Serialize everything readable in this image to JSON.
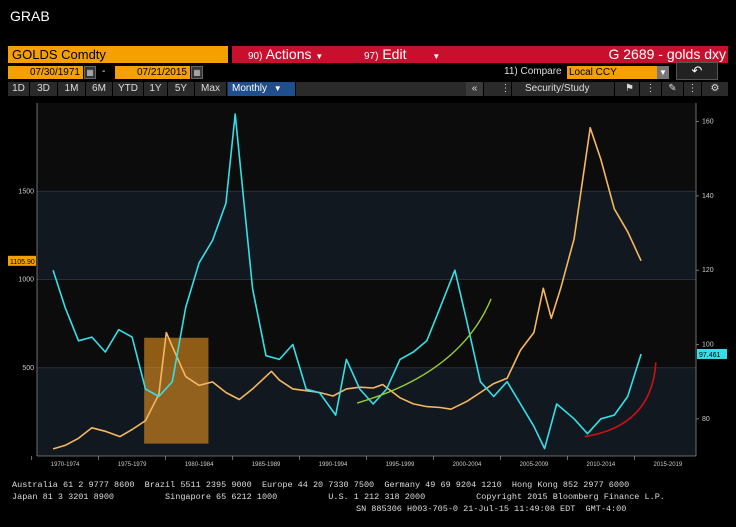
{
  "window": {
    "title": "GRAB"
  },
  "header": {
    "ticker": "GOLDS Comdty",
    "actions": {
      "num": "90)",
      "label": "Actions"
    },
    "edit": {
      "num": "97)",
      "label": "Edit"
    },
    "chart_title": "G 2689 - golds dxy"
  },
  "date_range": {
    "start": "07/30/1971",
    "separator": "-",
    "end": "07/21/2015"
  },
  "compare": {
    "label": "11) Compare",
    "value": "Local CCY"
  },
  "toolbar": {
    "periods": [
      "1D",
      "3D",
      "1M",
      "6M",
      "YTD",
      "1Y",
      "5Y",
      "Max"
    ],
    "frequency": "Monthly",
    "security_study": "Security/Study",
    "collapse": "«"
  },
  "colors": {
    "gold_series": "#f5b860",
    "dxy_series": "#33e0e8",
    "highlight_box": "#e8921e",
    "green_arc": "#9acd32",
    "red_arc": "#cc1111",
    "accent_orange": "#f5a000",
    "bar_red": "#c8102e"
  },
  "chart_data": {
    "type": "line",
    "left_axis": {
      "ticks": [
        "500",
        "1000",
        "1500"
      ],
      "ylim": [
        0,
        2000
      ]
    },
    "right_axis": {
      "ticks": [
        "80",
        "100",
        "120",
        "140",
        "160"
      ],
      "ylim": [
        70,
        165
      ]
    },
    "x_ticks": [
      "1970-1974",
      "1975-1979",
      "1980-1984",
      "1985-1989",
      "1990-1994",
      "1995-1999",
      "2000-2004",
      "2005-2009",
      "2010-2014",
      "2015-2019"
    ],
    "last_value_left": "1105.90",
    "last_value_right": "97.461",
    "series": [
      {
        "axis": "left",
        "x": [
          1971.6,
          1972.5,
          1973.5,
          1974.5,
          1975.5,
          1976.6,
          1977.5,
          1978.5,
          1979.5,
          1980.05,
          1980.5,
          1981.5,
          1982.5,
          1983.5,
          1984.5,
          1985.5,
          1986.5,
          1987.9,
          1988.5,
          1989.5,
          1990.5,
          1991.5,
          1992.5,
          1993.5,
          1994.5,
          1995.5,
          1996.2,
          1997.5,
          1998.5,
          1999.5,
          2000.5,
          2001.3,
          2002.5,
          2003.5,
          2004.5,
          2005.5,
          2006.5,
          2007.5,
          2008.2,
          2008.8,
          2009.5,
          2010.5,
          2011.7,
          2012.5,
          2013.5,
          2014.5,
          2015.5
        ],
        "values": [
          40,
          60,
          100,
          160,
          140,
          110,
          150,
          200,
          350,
          700,
          620,
          450,
          400,
          420,
          360,
          320,
          380,
          480,
          430,
          380,
          370,
          360,
          340,
          380,
          390,
          385,
          405,
          330,
          295,
          280,
          275,
          265,
          310,
          360,
          410,
          440,
          600,
          700,
          950,
          780,
          950,
          1230,
          1860,
          1680,
          1400,
          1270,
          1105.9
        ]
      },
      {
        "axis": "right",
        "x": [
          1971.6,
          1972.5,
          1973.5,
          1974.5,
          1975.5,
          1976.5,
          1977.5,
          1978.5,
          1979.5,
          1980.5,
          1981.5,
          1982.5,
          1983.5,
          1984.5,
          1985.2,
          1985.8,
          1986.5,
          1987.5,
          1988.5,
          1989.5,
          1990.5,
          1991.5,
          1992.7,
          1993.5,
          1994.5,
          1995.5,
          1996.5,
          1997.5,
          1998.5,
          1999.5,
          2000.5,
          2001.6,
          2002.5,
          2003.5,
          2004.5,
          2005.5,
          2006.5,
          2007.5,
          2008.3,
          2009.2,
          2010.5,
          2011.5,
          2012.5,
          2013.5,
          2014.5,
          2015.5
        ],
        "values": [
          120,
          110,
          101,
          102,
          98,
          104,
          102,
          88,
          86,
          90,
          110,
          122,
          128,
          138,
          162,
          140,
          115,
          97,
          96,
          100,
          88,
          87,
          81,
          96,
          88,
          84,
          88,
          96,
          98,
          101,
          110,
          120,
          106,
          90,
          86,
          90,
          84,
          78,
          72,
          84,
          80,
          76,
          80,
          81,
          86,
          97.461
        ]
      }
    ]
  },
  "footer": {
    "line1": "Australia 61 2 9777 8600  Brazil 5511 2395 9000  Europe 44 20 7330 7500  Germany 49 69 9204 1210  Hong Kong 852 2977 6000",
    "line2": "Japan 81 3 3201 8900          Singapore 65 6212 1000          U.S. 1 212 318 2000          Copyright 2015 Bloomberg Finance L.P.",
    "line3": "SN 885306 H003-705-0 21-Jul-15 11:49:08 EDT  GMT-4:00"
  }
}
